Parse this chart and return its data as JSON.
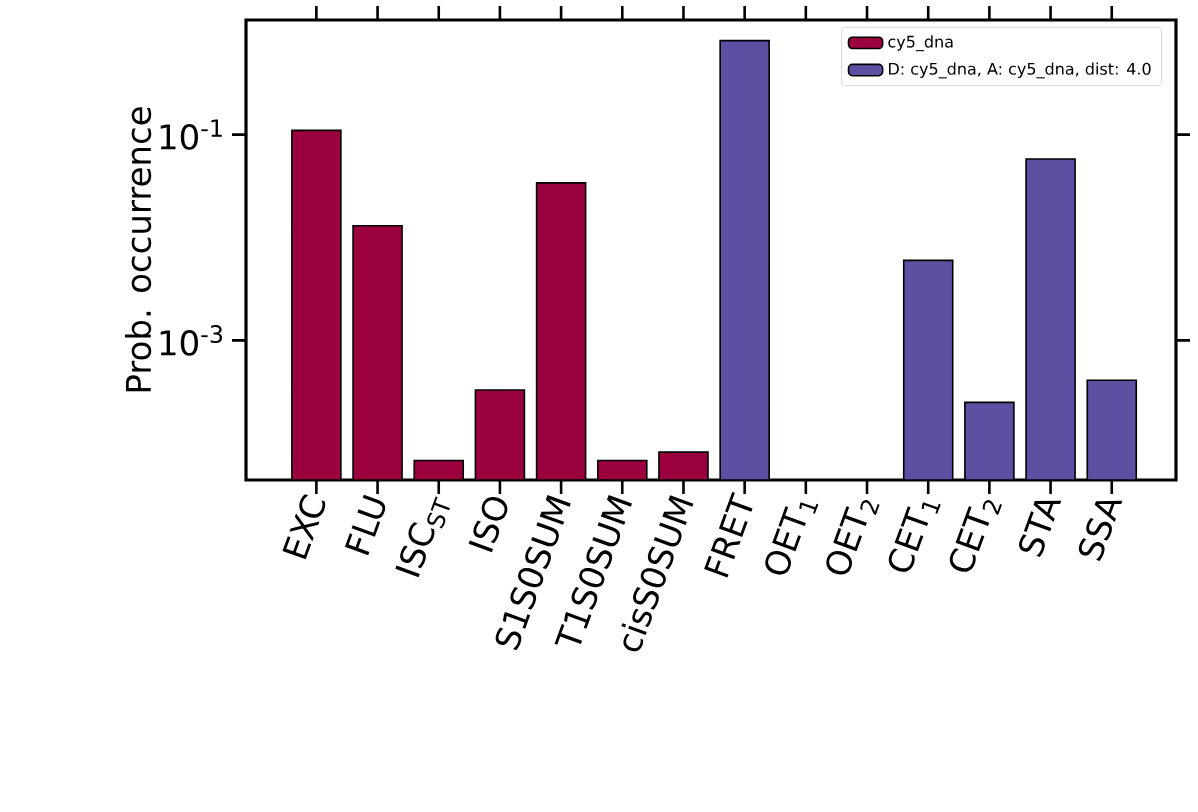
{
  "chart_data": {
    "type": "bar",
    "ylabel": "Prob. occurrence",
    "categories": [
      "EXC",
      "FLU",
      "ISC$_{ST}$",
      "ISO",
      "S1S0SUM",
      "T1S0SUM",
      "cisS0SUM",
      "FRET",
      "OET$_{1}$",
      "OET$_{2}$",
      "CET$_{1}$",
      "CET$_{2}$",
      "STA",
      "SSA"
    ],
    "series": [
      {
        "name": "cy5_dna",
        "color": "#9b003f",
        "values": [
          0.11,
          0.013,
          6.8e-05,
          0.00033,
          0.034,
          6.8e-05,
          8.2e-05,
          null,
          null,
          null,
          null,
          null,
          null,
          null
        ]
      },
      {
        "name": "D: cy5_dna, A: cy5_dna, dist: 4.0",
        "color": "#5e4fa2",
        "values": [
          null,
          null,
          null,
          null,
          null,
          null,
          null,
          0.82,
          null,
          null,
          0.006,
          0.00025,
          0.058,
          0.00041
        ]
      }
    ],
    "log": "y",
    "ylim": [
      4.4e-05,
      1.3
    ],
    "yticks": [
      {
        "value": 0.1,
        "label": "10$^{-1}$"
      },
      {
        "value": 0.001,
        "label": "10$^{-3}$"
      }
    ],
    "legend": "top right"
  }
}
